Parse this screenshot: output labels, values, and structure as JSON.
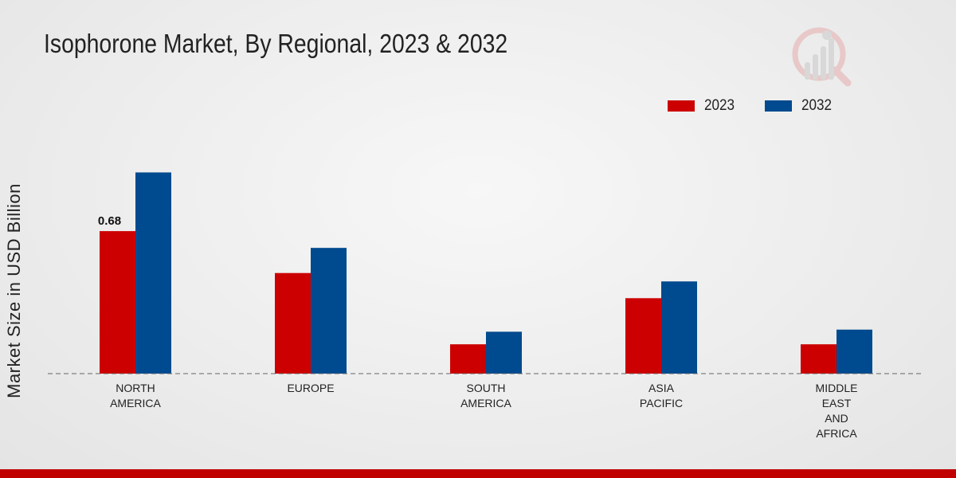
{
  "chart_data": {
    "type": "bar",
    "title": "Isophorone Market, By Regional, 2023 & 2032",
    "ylabel": "Market Size in USD Billion",
    "xlabel": "",
    "categories": [
      [
        "NORTH",
        "AMERICA"
      ],
      [
        "EUROPE"
      ],
      [
        "SOUTH",
        "AMERICA"
      ],
      [
        "ASIA",
        "PACIFIC"
      ],
      [
        "MIDDLE",
        "EAST",
        "AND",
        "AFRICA"
      ]
    ],
    "series": [
      {
        "name": "2023",
        "color": "#cc0000",
        "values": [
          0.68,
          0.48,
          0.14,
          0.36,
          0.14
        ]
      },
      {
        "name": "2032",
        "color": "#004a8f",
        "values": [
          0.96,
          0.6,
          0.2,
          0.44,
          0.21
        ]
      }
    ],
    "data_labels": [
      {
        "series": 0,
        "index": 0,
        "text": "0.68"
      }
    ],
    "ylim": [
      0,
      1.3
    ],
    "grid": false,
    "legend_position": "top-right"
  },
  "colors": {
    "accent_bar": "#c00000",
    "baseline": "#666666"
  }
}
